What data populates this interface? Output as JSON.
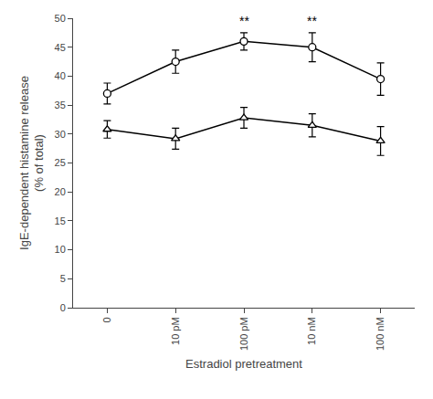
{
  "chart_data": {
    "type": "line",
    "categories": [
      "0",
      "10 pM",
      "100 pM",
      "10 nM",
      "100 nM"
    ],
    "series": [
      {
        "color": "#000000",
        "marker": "circle",
        "line_style": "solid",
        "values": [
          37.0,
          42.5,
          46.0,
          45.0,
          39.5
        ],
        "errors": [
          1.8,
          2.0,
          1.5,
          2.5,
          2.8
        ]
      },
      {
        "color": "#000000",
        "marker": "triangle-up",
        "line_style": "solid",
        "values": [
          30.8,
          29.2,
          32.8,
          31.5,
          28.8
        ],
        "errors": [
          1.5,
          1.8,
          1.8,
          2.0,
          2.5
        ]
      }
    ],
    "xlabel": "Estradiol pretreatment",
    "ylabel": "IgE-dependent histamine release\n(% of total)",
    "ylim": [
      0,
      50
    ],
    "yticks": [
      0,
      5,
      10,
      15,
      20,
      25,
      30,
      35,
      40,
      45,
      50
    ],
    "annotations": [
      {
        "text": "**",
        "category": "100 pM",
        "y": 48.0,
        "color": "#000000"
      },
      {
        "text": "**",
        "category": "10 nM",
        "y": 48.0,
        "color": "#000000"
      }
    ],
    "grid": false
  }
}
